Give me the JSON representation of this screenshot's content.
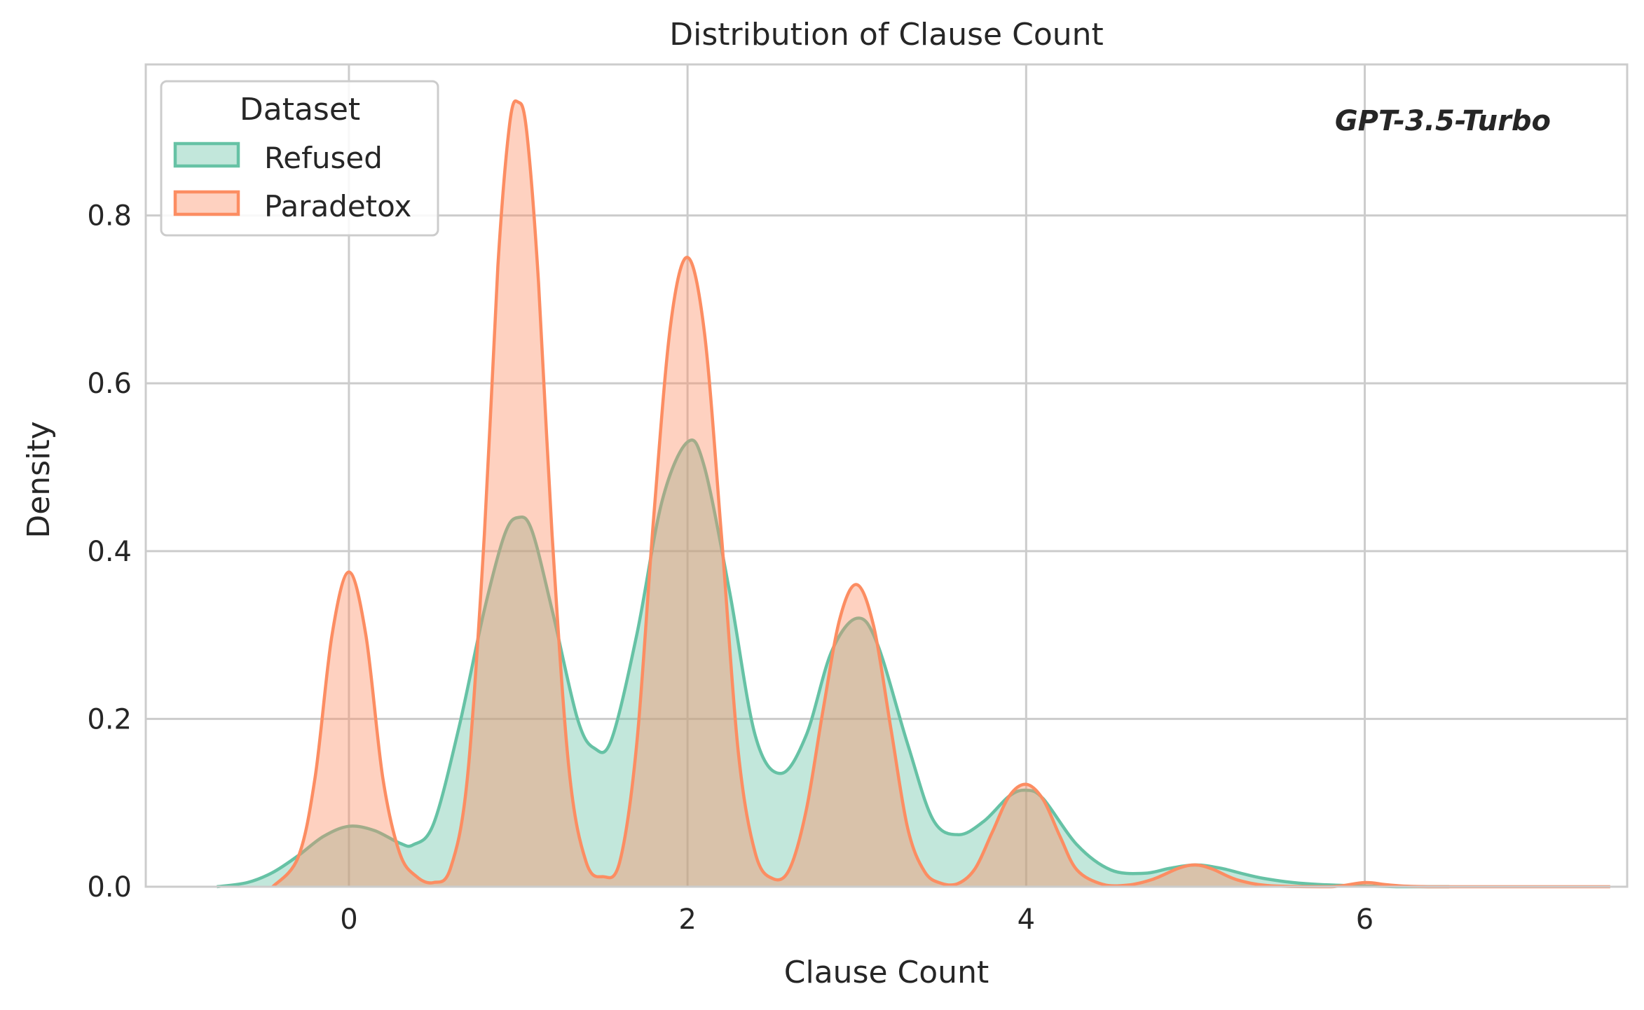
{
  "chart_data": {
    "type": "area",
    "title": "Distribution of Clause Count",
    "xlabel": "Clause Count",
    "ylabel": "Density",
    "xlim": [
      -1.2,
      7.55
    ],
    "ylim": [
      0,
      0.98
    ],
    "xticks": [
      0,
      2,
      4,
      6
    ],
    "xtick_labels": [
      "0",
      "2",
      "4",
      "6"
    ],
    "yticks": [
      0.0,
      0.2,
      0.4,
      0.6,
      0.8
    ],
    "ytick_labels": [
      "0.0",
      "0.2",
      "0.4",
      "0.6",
      "0.8"
    ],
    "grid": true,
    "legend": {
      "title": "Dataset",
      "placement": "top-left"
    },
    "annotation": "GPT-3.5-Turbo",
    "series": [
      {
        "name": "Refused",
        "color": "#66c2a5",
        "points": [
          [
            -0.78,
            0.0
          ],
          [
            -0.6,
            0.005
          ],
          [
            -0.45,
            0.017
          ],
          [
            -0.3,
            0.037
          ],
          [
            -0.15,
            0.06
          ],
          [
            0.0,
            0.072
          ],
          [
            0.15,
            0.067
          ],
          [
            0.3,
            0.052
          ],
          [
            0.38,
            0.05
          ],
          [
            0.5,
            0.075
          ],
          [
            0.65,
            0.19
          ],
          [
            0.8,
            0.33
          ],
          [
            0.92,
            0.42
          ],
          [
            1.0,
            0.44
          ],
          [
            1.08,
            0.425
          ],
          [
            1.2,
            0.33
          ],
          [
            1.35,
            0.2
          ],
          [
            1.45,
            0.165
          ],
          [
            1.55,
            0.175
          ],
          [
            1.7,
            0.3
          ],
          [
            1.85,
            0.46
          ],
          [
            2.0,
            0.53
          ],
          [
            2.1,
            0.5
          ],
          [
            2.25,
            0.35
          ],
          [
            2.4,
            0.18
          ],
          [
            2.55,
            0.135
          ],
          [
            2.7,
            0.18
          ],
          [
            2.85,
            0.28
          ],
          [
            3.0,
            0.32
          ],
          [
            3.12,
            0.29
          ],
          [
            3.3,
            0.17
          ],
          [
            3.45,
            0.08
          ],
          [
            3.6,
            0.062
          ],
          [
            3.75,
            0.078
          ],
          [
            3.9,
            0.108
          ],
          [
            4.0,
            0.115
          ],
          [
            4.1,
            0.105
          ],
          [
            4.3,
            0.05
          ],
          [
            4.5,
            0.02
          ],
          [
            4.7,
            0.016
          ],
          [
            4.85,
            0.022
          ],
          [
            5.0,
            0.026
          ],
          [
            5.15,
            0.022
          ],
          [
            5.4,
            0.01
          ],
          [
            5.7,
            0.003
          ],
          [
            6.2,
            0.0
          ],
          [
            6.5,
            0.0
          ]
        ]
      },
      {
        "name": "Paradetox",
        "color": "#fc8d62",
        "points": [
          [
            -0.45,
            0.0
          ],
          [
            -0.3,
            0.035
          ],
          [
            -0.2,
            0.13
          ],
          [
            -0.1,
            0.3
          ],
          [
            0.0,
            0.375
          ],
          [
            0.1,
            0.3
          ],
          [
            0.2,
            0.13
          ],
          [
            0.3,
            0.04
          ],
          [
            0.4,
            0.012
          ],
          [
            0.5,
            0.005
          ],
          [
            0.6,
            0.022
          ],
          [
            0.7,
            0.13
          ],
          [
            0.8,
            0.42
          ],
          [
            0.88,
            0.74
          ],
          [
            0.95,
            0.91
          ],
          [
            1.0,
            0.935
          ],
          [
            1.05,
            0.9
          ],
          [
            1.12,
            0.72
          ],
          [
            1.2,
            0.42
          ],
          [
            1.3,
            0.14
          ],
          [
            1.4,
            0.03
          ],
          [
            1.5,
            0.012
          ],
          [
            1.6,
            0.03
          ],
          [
            1.7,
            0.17
          ],
          [
            1.8,
            0.44
          ],
          [
            1.9,
            0.67
          ],
          [
            2.0,
            0.75
          ],
          [
            2.1,
            0.66
          ],
          [
            2.2,
            0.42
          ],
          [
            2.3,
            0.16
          ],
          [
            2.4,
            0.04
          ],
          [
            2.5,
            0.01
          ],
          [
            2.6,
            0.02
          ],
          [
            2.7,
            0.09
          ],
          [
            2.8,
            0.21
          ],
          [
            2.9,
            0.32
          ],
          [
            3.0,
            0.36
          ],
          [
            3.1,
            0.31
          ],
          [
            3.2,
            0.19
          ],
          [
            3.3,
            0.07
          ],
          [
            3.4,
            0.018
          ],
          [
            3.5,
            0.004
          ],
          [
            3.6,
            0.004
          ],
          [
            3.7,
            0.022
          ],
          [
            3.8,
            0.065
          ],
          [
            3.9,
            0.108
          ],
          [
            4.0,
            0.122
          ],
          [
            4.1,
            0.104
          ],
          [
            4.2,
            0.06
          ],
          [
            4.3,
            0.02
          ],
          [
            4.45,
            0.003
          ],
          [
            4.6,
            0.002
          ],
          [
            4.75,
            0.009
          ],
          [
            4.9,
            0.022
          ],
          [
            5.0,
            0.026
          ],
          [
            5.1,
            0.021
          ],
          [
            5.25,
            0.008
          ],
          [
            5.45,
            0.001
          ],
          [
            5.8,
            0.0
          ],
          [
            6.0,
            0.005
          ],
          [
            6.15,
            0.002
          ],
          [
            6.4,
            0.0
          ],
          [
            7.45,
            0.0
          ]
        ]
      }
    ]
  }
}
